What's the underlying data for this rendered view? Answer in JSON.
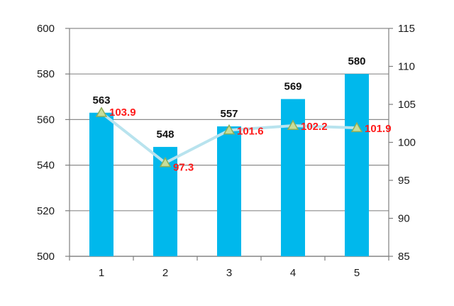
{
  "chart_data": {
    "type": "bar",
    "title": "",
    "xlabel": "",
    "ylabel": "",
    "ylabel_right": "",
    "categories": [
      "1",
      "2",
      "3",
      "4",
      "5"
    ],
    "ylim": [
      500,
      600
    ],
    "y2lim": [
      85,
      115
    ],
    "y_ticks": [
      500,
      520,
      540,
      560,
      580,
      600
    ],
    "y2_ticks": [
      85,
      90,
      95,
      100,
      105,
      110,
      115
    ],
    "grid": true,
    "legend": "none",
    "series": [
      {
        "type": "bar",
        "axis": "left",
        "values": [
          563,
          548,
          557,
          569,
          580
        ],
        "color": "#00B8EC",
        "label_color": "#111111"
      },
      {
        "type": "line",
        "axis": "right",
        "marker": "triangle",
        "values": [
          103.9,
          97.3,
          101.6,
          102.2,
          101.9
        ],
        "value_labels": [
          "103.9",
          "97.3",
          "101.6",
          "102.2",
          "101.9"
        ],
        "color": "#B8E3EE",
        "marker_fill": "#C8DD9A",
        "marker_stroke": "#8FAE59",
        "label_color": "#FF1A1A"
      }
    ]
  }
}
